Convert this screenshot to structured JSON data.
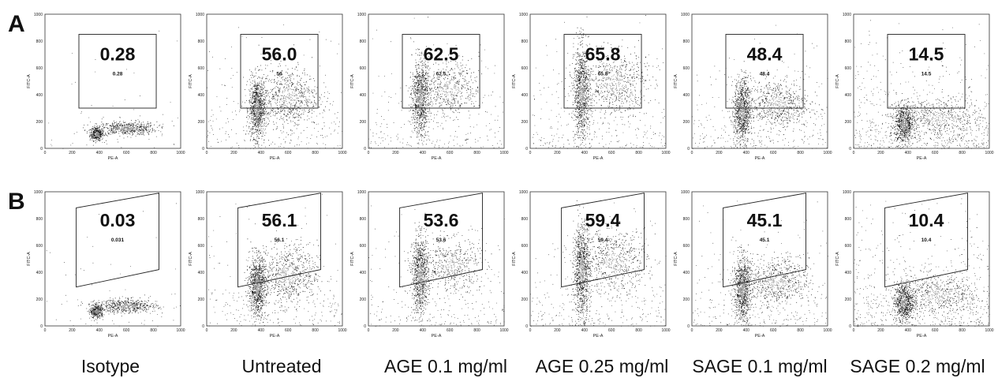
{
  "figure": {
    "row_labels": [
      "A",
      "B"
    ],
    "conditions": [
      "Isotype",
      "Untreated",
      "AGE 0.1 mg/ml",
      "AGE 0.25 mg/ml",
      "SAGE 0.1 mg/ml",
      "SAGE 0.2 mg/ml"
    ]
  },
  "chart_data": {
    "type": "scatter",
    "description_axes": {
      "xlabel": "PE-A",
      "ylabel": "FITC-A",
      "xlim": [
        0,
        1000
      ],
      "ylim": [
        0,
        1000
      ],
      "xticks": [
        0,
        200,
        400,
        600,
        800,
        1000
      ],
      "yticks": [
        0,
        200,
        400,
        600,
        800,
        1000
      ]
    },
    "panels": [
      {
        "row": "A",
        "condition": "Isotype",
        "gate_shape": "rectangle",
        "gate_percent_large": "0.28",
        "gate_percent_small": "0.28"
      },
      {
        "row": "A",
        "condition": "Untreated",
        "gate_shape": "rectangle",
        "gate_percent_large": "56.0",
        "gate_percent_small": "56"
      },
      {
        "row": "A",
        "condition": "AGE 0.1 mg/ml",
        "gate_shape": "rectangle",
        "gate_percent_large": "62.5",
        "gate_percent_small": "62.5"
      },
      {
        "row": "A",
        "condition": "AGE 0.25 mg/ml",
        "gate_shape": "rectangle",
        "gate_percent_large": "65.8",
        "gate_percent_small": "65.8"
      },
      {
        "row": "A",
        "condition": "SAGE 0.1 mg/ml",
        "gate_shape": "rectangle",
        "gate_percent_large": "48.4",
        "gate_percent_small": "48.4"
      },
      {
        "row": "A",
        "condition": "SAGE 0.2 mg/ml",
        "gate_shape": "rectangle",
        "gate_percent_large": "14.5",
        "gate_percent_small": "14.5"
      },
      {
        "row": "B",
        "condition": "Isotype",
        "gate_shape": "parallelogram",
        "gate_percent_large": "0.03",
        "gate_percent_small": "0.031"
      },
      {
        "row": "B",
        "condition": "Untreated",
        "gate_shape": "parallelogram",
        "gate_percent_large": "56.1",
        "gate_percent_small": "56.1"
      },
      {
        "row": "B",
        "condition": "AGE 0.1 mg/ml",
        "gate_shape": "parallelogram",
        "gate_percent_large": "53.6",
        "gate_percent_small": "53.6"
      },
      {
        "row": "B",
        "condition": "AGE 0.25 mg/ml",
        "gate_shape": "parallelogram",
        "gate_percent_large": "59.4",
        "gate_percent_small": "59.4"
      },
      {
        "row": "B",
        "condition": "SAGE 0.1 mg/ml",
        "gate_shape": "parallelogram",
        "gate_percent_large": "45.1",
        "gate_percent_small": "45.1"
      },
      {
        "row": "B",
        "condition": "SAGE 0.2 mg/ml",
        "gate_shape": "parallelogram",
        "gate_percent_large": "10.4",
        "gate_percent_small": "10.4"
      }
    ],
    "gates": {
      "rectangle": {
        "x_range": [
          250,
          820
        ],
        "y_range": [
          300,
          850
        ]
      },
      "parallelogram": {
        "left_x": 230,
        "right_x": 840,
        "left_y": [
          290,
          880
        ],
        "right_y": [
          420,
          990
        ]
      }
    },
    "colors": {
      "dots": "#111111",
      "dense": "#8a8a8a",
      "frame": "#333333"
    }
  }
}
